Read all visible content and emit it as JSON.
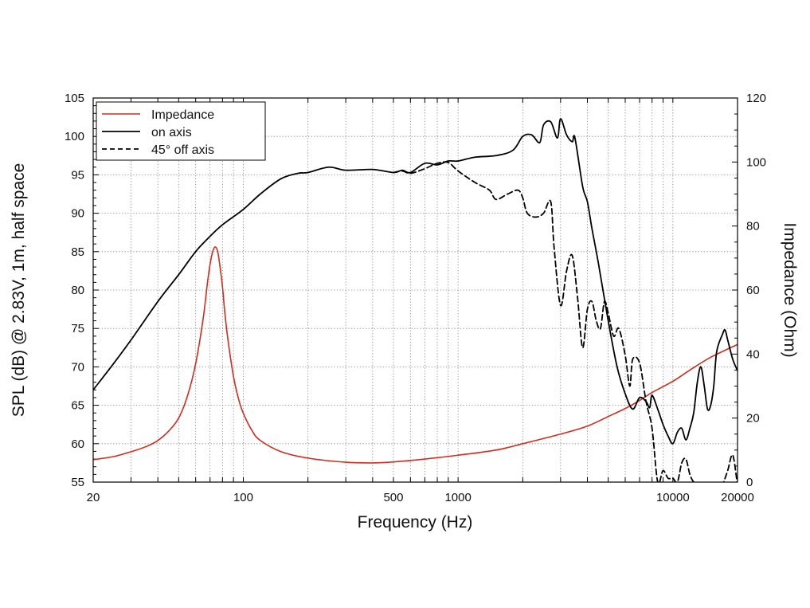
{
  "chart_data": {
    "type": "line",
    "xlabel": "Frequency (Hz)",
    "ylabel": "SPL (dB) @ 2.83V, 1m, half space",
    "y2label": "Impedance (Ohm)",
    "xscale": "log",
    "xlim": [
      20,
      20000
    ],
    "ylim": [
      55,
      105
    ],
    "y2lim": [
      0,
      120
    ],
    "grid": true,
    "legend_position": "top-left",
    "x_tick_labels": [
      "20",
      "100",
      "500",
      "1000",
      "10000",
      "20000"
    ],
    "y_tick_labels": [
      "55",
      "60",
      "65",
      "70",
      "75",
      "80",
      "85",
      "90",
      "95",
      "100",
      "105"
    ],
    "y2_tick_labels": [
      "0",
      "20",
      "40",
      "60",
      "80",
      "100",
      "120"
    ],
    "series": [
      {
        "name": "Impedance",
        "axis": "right",
        "color": "#d42b1e",
        "dash": "solid",
        "x": [
          20,
          25,
          30,
          35,
          40,
          45,
          50,
          55,
          60,
          65,
          68,
          70,
          72,
          74,
          76,
          78,
          80,
          82,
          85,
          90,
          95,
          100,
          110,
          120,
          150,
          200,
          300,
          400,
          500,
          700,
          1000,
          1500,
          2000,
          3000,
          4000,
          5000,
          6000,
          7000,
          8000,
          10000,
          12000,
          15000,
          20000
        ],
        "y": [
          7,
          8,
          9.5,
          11,
          13,
          16,
          20,
          27,
          37,
          51,
          62,
          68,
          72,
          73.5,
          72,
          67,
          61,
          53,
          44,
          33,
          26,
          21.5,
          16,
          13,
          9.5,
          7.5,
          6.2,
          6,
          6.3,
          7.2,
          8.4,
          10,
          12,
          15,
          17.5,
          20.5,
          23,
          25.5,
          28,
          31.5,
          35,
          39,
          43
        ]
      },
      {
        "name": "on axis",
        "axis": "left",
        "color": "#000000",
        "dash": "solid",
        "x": [
          20,
          25,
          30,
          40,
          50,
          60,
          70,
          80,
          100,
          120,
          150,
          180,
          200,
          250,
          300,
          400,
          500,
          550,
          600,
          700,
          800,
          900,
          1000,
          1200,
          1500,
          1800,
          2000,
          2200,
          2400,
          2500,
          2700,
          2900,
          3000,
          3200,
          3400,
          3500,
          3800,
          4000,
          4200,
          4500,
          5000,
          5500,
          6000,
          6500,
          7000,
          7500,
          7800,
          8000,
          8500,
          9000,
          9500,
          10000,
          10500,
          11000,
          11500,
          12000,
          12500,
          13000,
          13500,
          14000,
          14500,
          15000,
          15500,
          16000,
          17000,
          17500,
          18000,
          19000,
          20000
        ],
        "y": [
          67,
          70.5,
          73.5,
          78.5,
          82,
          85,
          87,
          88.5,
          90.5,
          92.5,
          94.5,
          95.2,
          95.3,
          96,
          95.6,
          95.7,
          95.3,
          95.6,
          95.3,
          96.5,
          96.3,
          96.8,
          96.8,
          97.3,
          97.5,
          98.2,
          100,
          100.2,
          99.2,
          101.5,
          101.9,
          99.8,
          102.3,
          100.2,
          99.3,
          99.8,
          93.5,
          91.5,
          88,
          83.5,
          76,
          70,
          66.5,
          64.5,
          66,
          65.5,
          64.7,
          66.3,
          64.5,
          62.5,
          61,
          60,
          61.5,
          62,
          60.5,
          62,
          64,
          68,
          70,
          67.5,
          64.5,
          65,
          67.5,
          72,
          74.2,
          74.8,
          73.5,
          71,
          69.5
        ]
      },
      {
        "name": "45° off axis",
        "axis": "left",
        "color": "#000000",
        "dash": "dashed",
        "x": [
          500,
          550,
          600,
          700,
          800,
          900,
          1000,
          1200,
          1400,
          1500,
          1700,
          1900,
          2000,
          2100,
          2300,
          2500,
          2700,
          2800,
          3000,
          3200,
          3400,
          3600,
          3800,
          4000,
          4200,
          4400,
          4600,
          4800,
          5000,
          5300,
          5600,
          6000,
          6300,
          6500,
          7000,
          7500,
          8000,
          8500,
          9000,
          9500,
          10000,
          10500,
          11000,
          11500,
          12000,
          12500,
          13000,
          14000,
          15000,
          16000,
          17000,
          18000,
          19000,
          20000
        ],
        "y": [
          95.3,
          95.5,
          95.2,
          95.8,
          96.5,
          96.6,
          95.5,
          94,
          93,
          91.8,
          92.5,
          93,
          92,
          90,
          89.5,
          90,
          91.5,
          85.5,
          78,
          82.5,
          84.5,
          79,
          72.5,
          77.5,
          78.5,
          76,
          75,
          78.5,
          77,
          74,
          75,
          71.5,
          67.5,
          71,
          70.5,
          65.5,
          62,
          55,
          56.5,
          55.5,
          55.5,
          55,
          57.5,
          58,
          56,
          55,
          54.8,
          53.8,
          53.5,
          52.5,
          54.5,
          56.5,
          58.5,
          54.5
        ]
      }
    ]
  }
}
